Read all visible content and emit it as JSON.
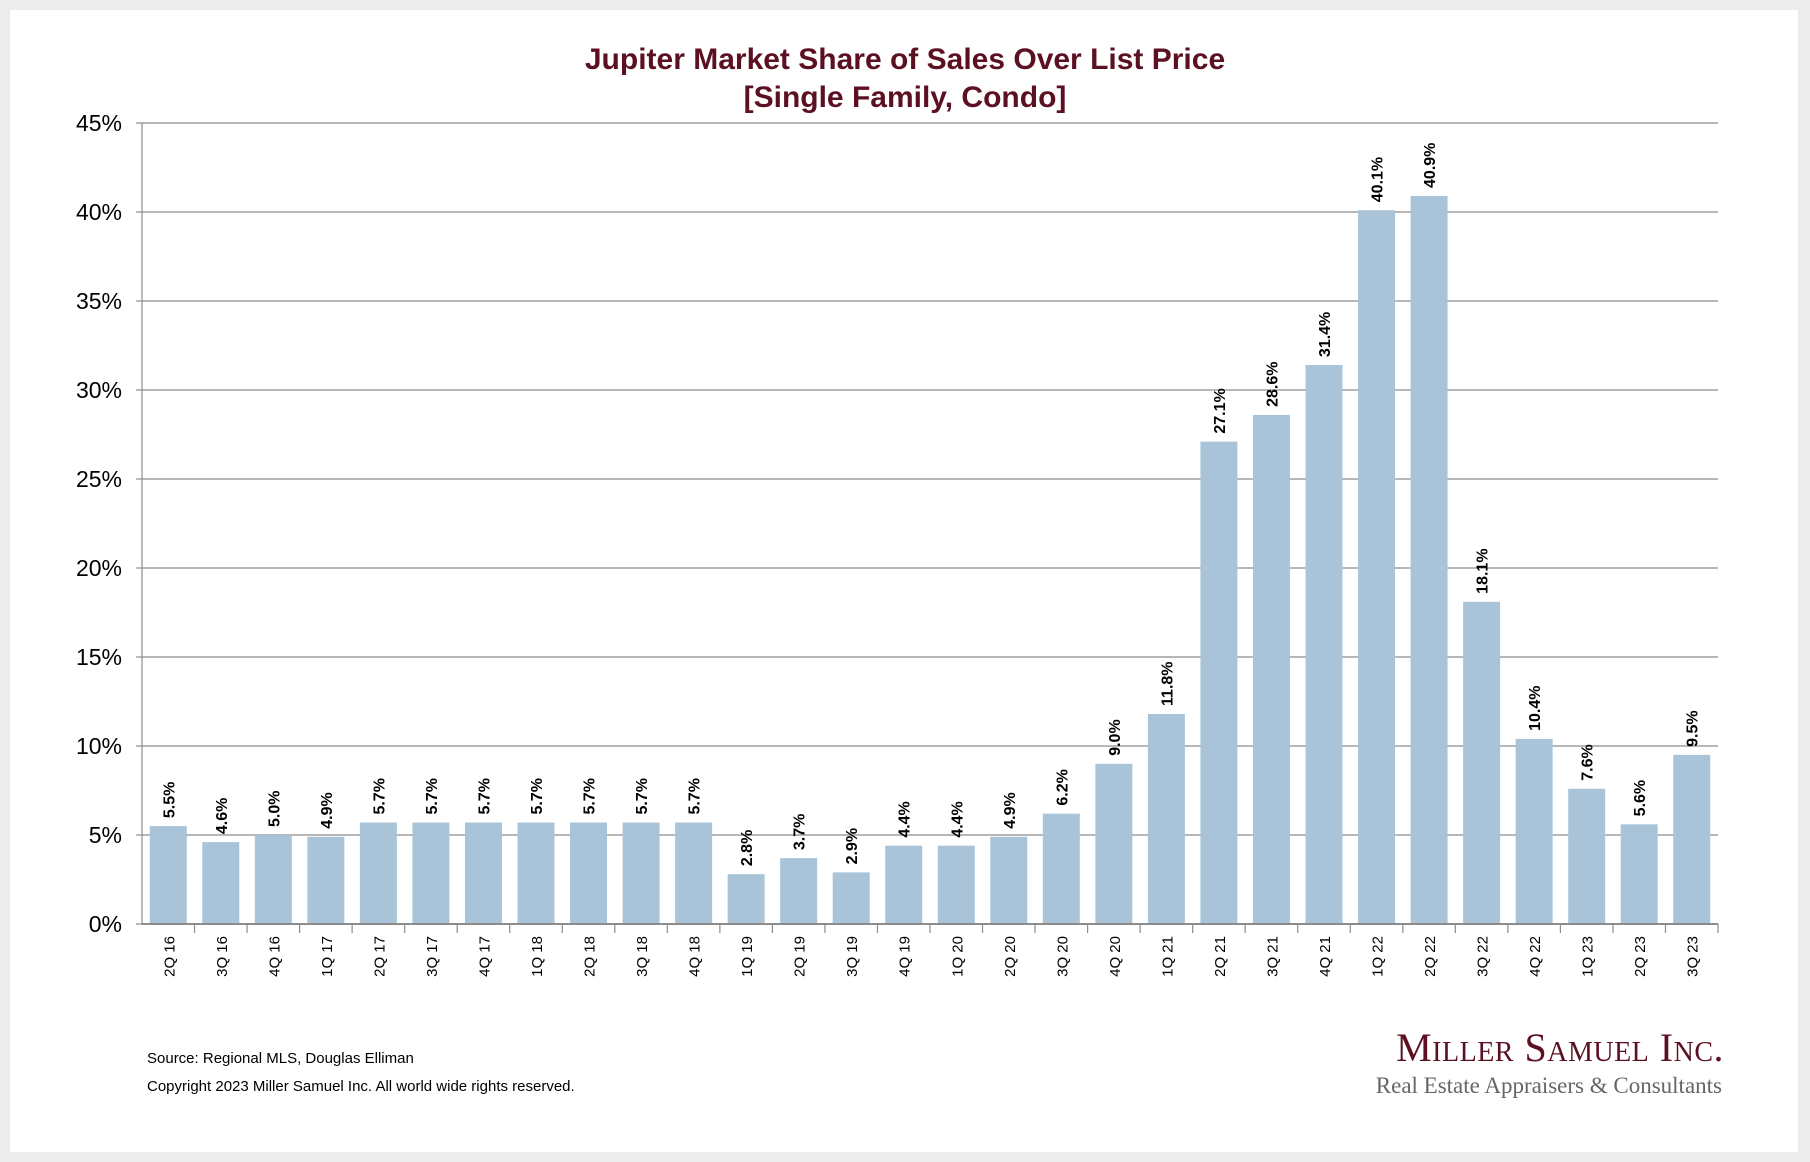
{
  "chart_data": {
    "type": "bar",
    "title": "Jupiter Market Share of Sales Over List Price",
    "subtitle": "[Single Family, Condo]",
    "categories": [
      "2Q 16",
      "3Q 16",
      "4Q 16",
      "1Q 17",
      "2Q 17",
      "3Q 17",
      "4Q 17",
      "1Q 18",
      "2Q 18",
      "3Q 18",
      "4Q 18",
      "1Q 19",
      "2Q 19",
      "3Q 19",
      "4Q 19",
      "1Q 20",
      "2Q 20",
      "3Q 20",
      "4Q 20",
      "1Q 21",
      "2Q 21",
      "3Q 21",
      "4Q 21",
      "1Q 22",
      "2Q 22",
      "3Q 22",
      "4Q 22",
      "1Q 23",
      "2Q 23",
      "3Q 23"
    ],
    "values": [
      5.5,
      4.6,
      5.0,
      4.9,
      5.7,
      5.7,
      5.7,
      5.7,
      5.7,
      5.7,
      5.7,
      2.8,
      3.7,
      2.9,
      4.4,
      4.4,
      4.9,
      6.2,
      9.0,
      11.8,
      27.1,
      28.6,
      31.4,
      40.1,
      40.9,
      18.1,
      10.4,
      7.6,
      5.6,
      9.5
    ],
    "ylim": [
      0,
      45
    ],
    "yticks": [
      "0%",
      "5%",
      "10%",
      "15%",
      "20%",
      "25%",
      "30%",
      "35%",
      "40%",
      "45%"
    ],
    "grid": true,
    "bar_color": "#a9c4d8",
    "title_color": "#5b1122"
  },
  "footer": {
    "source": "Source: Regional MLS, Douglas Elliman",
    "copyright": "Copyright 2023 Miller Samuel Inc.  All world wide rights reserved."
  },
  "logo": {
    "name": "Miller Samuel Inc.",
    "tagline": "Real Estate Appraisers & Consultants"
  }
}
